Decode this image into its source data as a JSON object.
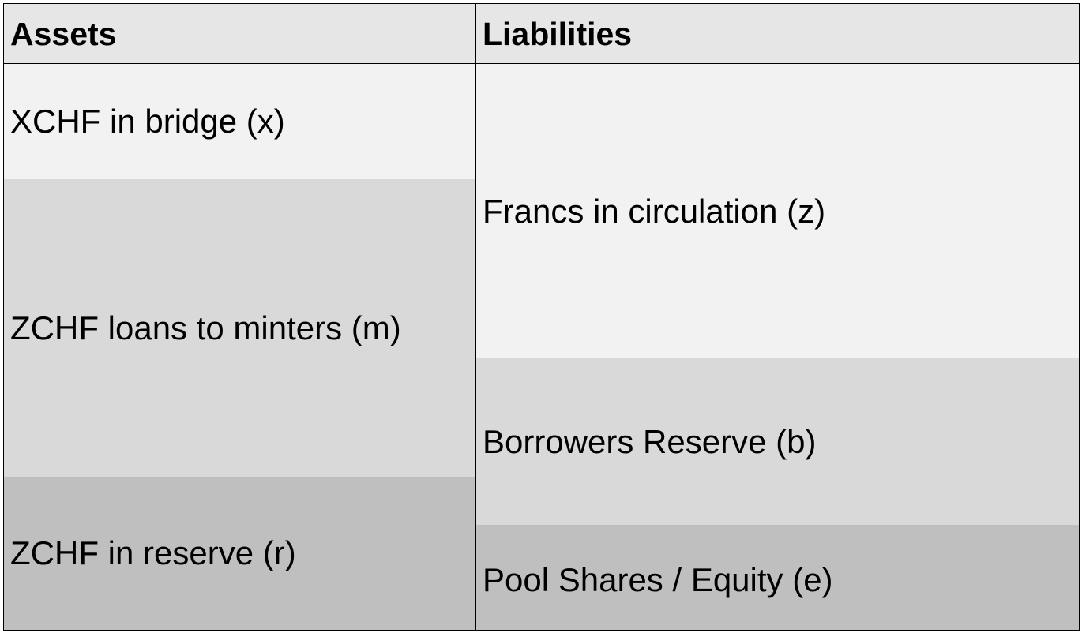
{
  "balance_sheet": {
    "assets_header": "Assets",
    "liabilities_header": "Liabilities",
    "assets": [
      {
        "label": "XCHF in bridge (x)",
        "color": "#f2f2f2"
      },
      {
        "label": "ZCHF loans to minters (m)",
        "color": "#d9d9d9"
      },
      {
        "label": "ZCHF in reserve (r)",
        "color": "#bfbfbf"
      }
    ],
    "liabilities": [
      {
        "label": "Francs in circulation (z)",
        "color": "#f2f2f2"
      },
      {
        "label": "Borrowers Reserve (b)",
        "color": "#d9d9d9"
      },
      {
        "label": "Pool Shares / Equity (e)",
        "color": "#bfbfbf"
      }
    ],
    "header_color": "#e6e6e6"
  }
}
